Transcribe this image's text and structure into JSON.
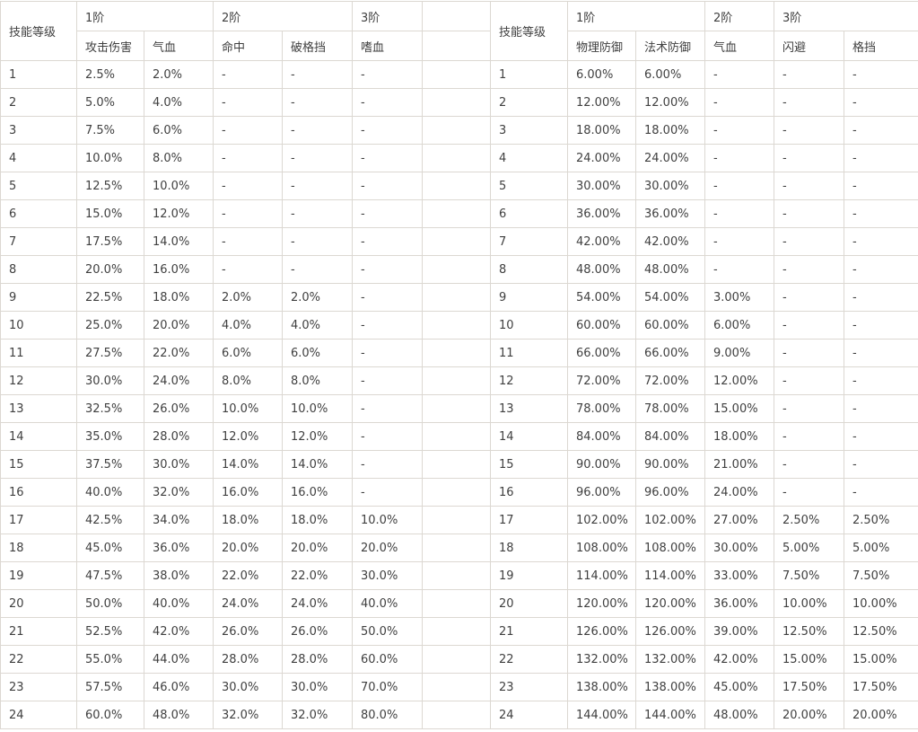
{
  "page": {
    "background_color": "#ffffff",
    "text_color": "#404040",
    "border_color": "#dcd8d2"
  },
  "left_table": {
    "level_header": "技能等级",
    "tiers": [
      "1阶",
      "2阶",
      "3阶"
    ],
    "columns": [
      "攻击伤害",
      "气血",
      "命中",
      "破格挡",
      "嗜血"
    ],
    "rows": [
      [
        "1",
        "2.5%",
        "2.0%",
        "-",
        "-",
        "-"
      ],
      [
        "2",
        "5.0%",
        "4.0%",
        "-",
        "-",
        "-"
      ],
      [
        "3",
        "7.5%",
        "6.0%",
        "-",
        "-",
        "-"
      ],
      [
        "4",
        "10.0%",
        "8.0%",
        "-",
        "-",
        "-"
      ],
      [
        "5",
        "12.5%",
        "10.0%",
        "-",
        "-",
        "-"
      ],
      [
        "6",
        "15.0%",
        "12.0%",
        "-",
        "-",
        "-"
      ],
      [
        "7",
        "17.5%",
        "14.0%",
        "-",
        "-",
        "-"
      ],
      [
        "8",
        "20.0%",
        "16.0%",
        "-",
        "-",
        "-"
      ],
      [
        "9",
        "22.5%",
        "18.0%",
        "2.0%",
        "2.0%",
        "-"
      ],
      [
        "10",
        "25.0%",
        "20.0%",
        "4.0%",
        "4.0%",
        "-"
      ],
      [
        "11",
        "27.5%",
        "22.0%",
        "6.0%",
        "6.0%",
        "-"
      ],
      [
        "12",
        "30.0%",
        "24.0%",
        "8.0%",
        "8.0%",
        "-"
      ],
      [
        "13",
        "32.5%",
        "26.0%",
        "10.0%",
        "10.0%",
        "-"
      ],
      [
        "14",
        "35.0%",
        "28.0%",
        "12.0%",
        "12.0%",
        "-"
      ],
      [
        "15",
        "37.5%",
        "30.0%",
        "14.0%",
        "14.0%",
        "-"
      ],
      [
        "16",
        "40.0%",
        "32.0%",
        "16.0%",
        "16.0%",
        "-"
      ],
      [
        "17",
        "42.5%",
        "34.0%",
        "18.0%",
        "18.0%",
        "10.0%"
      ],
      [
        "18",
        "45.0%",
        "36.0%",
        "20.0%",
        "20.0%",
        "20.0%"
      ],
      [
        "19",
        "47.5%",
        "38.0%",
        "22.0%",
        "22.0%",
        "30.0%"
      ],
      [
        "20",
        "50.0%",
        "40.0%",
        "24.0%",
        "24.0%",
        "40.0%"
      ],
      [
        "21",
        "52.5%",
        "42.0%",
        "26.0%",
        "26.0%",
        "50.0%"
      ],
      [
        "22",
        "55.0%",
        "44.0%",
        "28.0%",
        "28.0%",
        "60.0%"
      ],
      [
        "23",
        "57.5%",
        "46.0%",
        "30.0%",
        "30.0%",
        "70.0%"
      ],
      [
        "24",
        "60.0%",
        "48.0%",
        "32.0%",
        "32.0%",
        "80.0%"
      ]
    ]
  },
  "right_table": {
    "level_header": "技能等级",
    "tiers": [
      "1阶",
      "2阶",
      "3阶"
    ],
    "columns": [
      "物理防御",
      "法术防御",
      "气血",
      "闪避",
      "格挡"
    ],
    "rows": [
      [
        "1",
        "6.00%",
        "6.00%",
        "-",
        "-",
        "-"
      ],
      [
        "2",
        "12.00%",
        "12.00%",
        "-",
        "-",
        "-"
      ],
      [
        "3",
        "18.00%",
        "18.00%",
        "-",
        "-",
        "-"
      ],
      [
        "4",
        "24.00%",
        "24.00%",
        "-",
        "-",
        "-"
      ],
      [
        "5",
        "30.00%",
        "30.00%",
        "-",
        "-",
        "-"
      ],
      [
        "6",
        "36.00%",
        "36.00%",
        "-",
        "-",
        "-"
      ],
      [
        "7",
        "42.00%",
        "42.00%",
        "-",
        "-",
        "-"
      ],
      [
        "8",
        "48.00%",
        "48.00%",
        "-",
        "-",
        "-"
      ],
      [
        "9",
        "54.00%",
        "54.00%",
        "3.00%",
        "-",
        "-"
      ],
      [
        "10",
        "60.00%",
        "60.00%",
        "6.00%",
        "-",
        "-"
      ],
      [
        "11",
        "66.00%",
        "66.00%",
        "9.00%",
        "-",
        "-"
      ],
      [
        "12",
        "72.00%",
        "72.00%",
        "12.00%",
        "-",
        "-"
      ],
      [
        "13",
        "78.00%",
        "78.00%",
        "15.00%",
        "-",
        "-"
      ],
      [
        "14",
        "84.00%",
        "84.00%",
        "18.00%",
        "-",
        "-"
      ],
      [
        "15",
        "90.00%",
        "90.00%",
        "21.00%",
        "-",
        "-"
      ],
      [
        "16",
        "96.00%",
        "96.00%",
        "24.00%",
        "-",
        "-"
      ],
      [
        "17",
        "102.00%",
        "102.00%",
        "27.00%",
        "2.50%",
        "2.50%"
      ],
      [
        "18",
        "108.00%",
        "108.00%",
        "30.00%",
        "5.00%",
        "5.00%"
      ],
      [
        "19",
        "114.00%",
        "114.00%",
        "33.00%",
        "7.50%",
        "7.50%"
      ],
      [
        "20",
        "120.00%",
        "120.00%",
        "36.00%",
        "10.00%",
        "10.00%"
      ],
      [
        "21",
        "126.00%",
        "126.00%",
        "39.00%",
        "12.50%",
        "12.50%"
      ],
      [
        "22",
        "132.00%",
        "132.00%",
        "42.00%",
        "15.00%",
        "15.00%"
      ],
      [
        "23",
        "138.00%",
        "138.00%",
        "45.00%",
        "17.50%",
        "17.50%"
      ],
      [
        "24",
        "144.00%",
        "144.00%",
        "48.00%",
        "20.00%",
        "20.00%"
      ]
    ]
  }
}
